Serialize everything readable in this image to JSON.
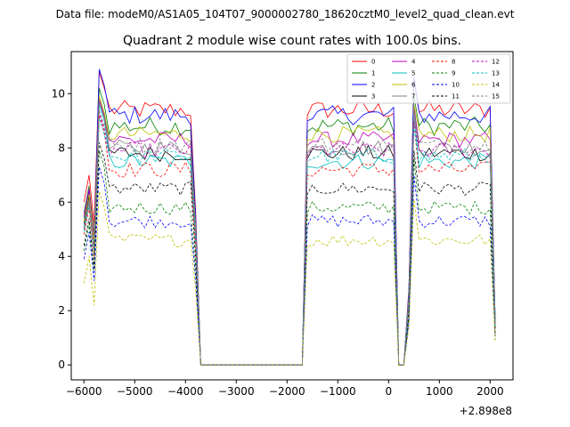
{
  "chart_data": {
    "type": "line",
    "suptitle": "Data file: modeM0/AS1A05_104T07_9000002780_18620cztM0_level2_quad_clean.evt",
    "title": "Quadrant 2 module wise count rates with 100.0s bins.",
    "xlabel": "",
    "ylabel": "",
    "x_offset_label": "+2.898e8",
    "xlim": [
      -6250,
      2450
    ],
    "ylim": [
      -0.55,
      11.55
    ],
    "xticks": [
      -6000,
      -5000,
      -4000,
      -3000,
      -2000,
      -1000,
      0,
      1000,
      2000
    ],
    "xtick_labels": [
      "−6000",
      "−5000",
      "−4000",
      "−3000",
      "−2000",
      "−1000",
      "0",
      "1000",
      "2000"
    ],
    "yticks": [
      0,
      2,
      4,
      6,
      8,
      10
    ],
    "ytick_labels": [
      "0",
      "2",
      "4",
      "6",
      "8",
      "10"
    ],
    "grid": false,
    "legend_position": "top-right",
    "legend_columns": 4,
    "segments": [
      {
        "start": -6000,
        "end": -3900
      },
      {
        "start": -1600,
        "end": 100
      },
      {
        "start": 600,
        "end": 2000
      }
    ],
    "gap_dips": [
      {
        "x": [
          -3800,
          -3700
        ],
        "y": [
          2.0,
          0.0
        ]
      },
      {
        "x": [
          200,
          300
        ],
        "y": [
          0.0,
          0.0
        ]
      },
      {
        "x": [
          2100
        ],
        "y": [
          1.5
        ]
      }
    ],
    "series": [
      {
        "name": "0",
        "color": "#ff0000",
        "dash": "solid",
        "level": 9.4,
        "start": 6.0,
        "peak": 10.8,
        "noise": 0.35
      },
      {
        "name": "1",
        "color": "#008000",
        "dash": "solid",
        "level": 8.8,
        "start": 5.6,
        "peak": 10.2,
        "noise": 0.35
      },
      {
        "name": "2",
        "color": "#0000ff",
        "dash": "solid",
        "level": 9.2,
        "start": 5.4,
        "peak": 10.9,
        "noise": 0.35
      },
      {
        "name": "3",
        "color": "#000000",
        "dash": "solid",
        "level": 7.8,
        "start": 5.2,
        "peak": 9.8,
        "noise": 0.3
      },
      {
        "name": "4",
        "color": "#bf00bf",
        "dash": "solid",
        "level": 8.3,
        "start": 5.5,
        "peak": 9.8,
        "noise": 0.3
      },
      {
        "name": "5",
        "color": "#00bfbf",
        "dash": "solid",
        "level": 7.5,
        "start": 5.0,
        "peak": 9.6,
        "noise": 0.3
      },
      {
        "name": "6",
        "color": "#bfbf00",
        "dash": "solid",
        "level": 8.5,
        "start": 5.3,
        "peak": 9.9,
        "noise": 0.3
      },
      {
        "name": "7",
        "color": "#808080",
        "dash": "solid",
        "level": 8.0,
        "start": 5.1,
        "peak": 9.7,
        "noise": 0.3
      },
      {
        "name": "8",
        "color": "#ff0000",
        "dash": "dashed",
        "level": 7.2,
        "start": 4.8,
        "peak": 9.2,
        "noise": 0.3
      },
      {
        "name": "9",
        "color": "#008000",
        "dash": "dashed",
        "level": 5.8,
        "start": 4.2,
        "peak": 7.9,
        "noise": 0.25
      },
      {
        "name": "10",
        "color": "#0000ff",
        "dash": "dashed",
        "level": 5.3,
        "start": 3.9,
        "peak": 7.3,
        "noise": 0.25
      },
      {
        "name": "11",
        "color": "#000000",
        "dash": "dashed",
        "level": 6.5,
        "start": 4.4,
        "peak": 8.2,
        "noise": 0.25
      },
      {
        "name": "12",
        "color": "#bf00bf",
        "dash": "dashed",
        "level": 7.9,
        "start": 5.0,
        "peak": 9.3,
        "noise": 0.3
      },
      {
        "name": "13",
        "color": "#00bfbf",
        "dash": "dashed",
        "level": 7.7,
        "start": 4.9,
        "peak": 9.1,
        "noise": 0.3
      },
      {
        "name": "14",
        "color": "#bfbf00",
        "dash": "dashed",
        "level": 4.6,
        "start": 3.0,
        "peak": 6.4,
        "noise": 0.25
      },
      {
        "name": "15",
        "color": "#808080",
        "dash": "dashed",
        "level": 8.1,
        "start": 5.0,
        "peak": 9.4,
        "noise": 0.3
      }
    ]
  }
}
